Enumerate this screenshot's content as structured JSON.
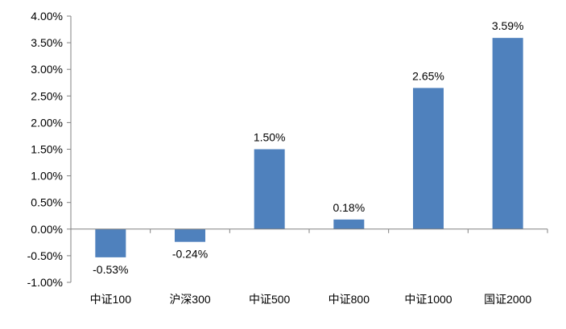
{
  "chart_data": {
    "type": "bar",
    "categories": [
      "中证100",
      "沪深300",
      "中证500",
      "中证800",
      "中证1000",
      "国证2000"
    ],
    "values": [
      -0.53,
      -0.24,
      1.5,
      0.18,
      2.65,
      3.59
    ],
    "data_labels": [
      "-0.53%",
      "-0.24%",
      "1.50%",
      "0.18%",
      "2.65%",
      "3.59%"
    ],
    "y_ticks": [
      -1.0,
      -0.5,
      0.0,
      0.5,
      1.0,
      1.5,
      2.0,
      2.5,
      3.0,
      3.5,
      4.0
    ],
    "y_tick_labels": [
      "-1.00%",
      "-0.50%",
      "0.00%",
      "0.50%",
      "1.00%",
      "1.50%",
      "2.00%",
      "2.50%",
      "3.00%",
      "3.50%",
      "4.00%"
    ],
    "ylim": [
      -1.0,
      4.0
    ],
    "title": "",
    "xlabel": "",
    "ylabel": "",
    "grid": false,
    "legend": "none",
    "bar_color": "#4f81bd",
    "axis_color": "#808080"
  }
}
